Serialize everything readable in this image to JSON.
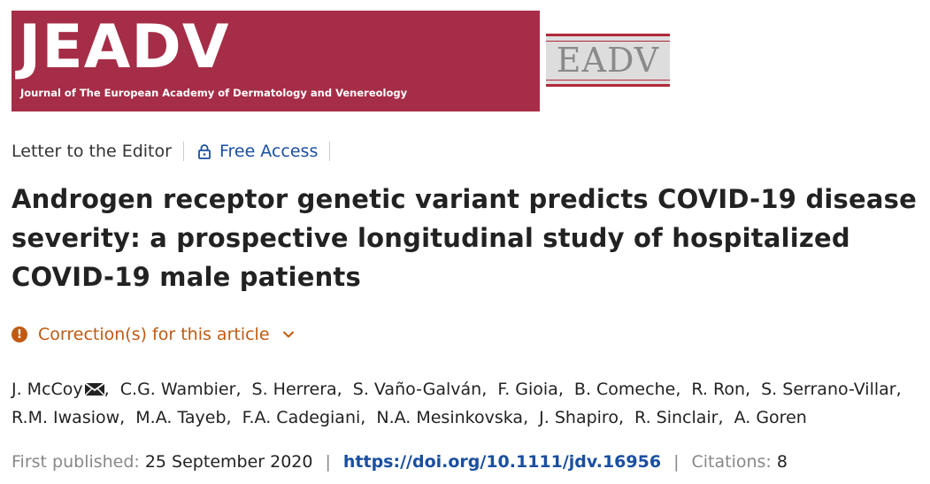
{
  "header": {
    "journal_logo_text": "JEADV",
    "journal_full_name": "Journal of The European Academy of Dermatology and Venereology",
    "society_logo_text": "EADV",
    "colors": {
      "brand": "#a62d47",
      "link": "#1a4fa0",
      "warning": "#c05a12"
    }
  },
  "article_meta": {
    "type": "Letter to the Editor",
    "access_label": "Free Access",
    "access_icon": "lock-icon"
  },
  "article": {
    "title": "Androgen receptor genetic variant predicts COVID-19 disease severity: a prospective longitudinal study of hospitalized COVID-19 male patients"
  },
  "correction": {
    "label": "Correction(s) for this article",
    "icon": "alert-icon"
  },
  "authors": [
    "J. McCoy",
    "C.G. Wambier",
    "S. Herrera",
    "S. Vaño-Galván",
    "F. Gioia",
    "B. Comeche",
    "R. Ron",
    "S. Serrano-Villar",
    "R.M. Iwasiow",
    "M.A. Tayeb",
    "F.A. Cadegiani",
    "N.A. Mesinkovska",
    "J. Shapiro",
    "R. Sinclair",
    "A. Goren"
  ],
  "publication": {
    "first_published_label": "First published:",
    "first_published_date": "25 September 2020",
    "doi": "https://doi.org/10.1111/jdv.16956",
    "citations_label": "Citations:",
    "citations_count": "8"
  }
}
